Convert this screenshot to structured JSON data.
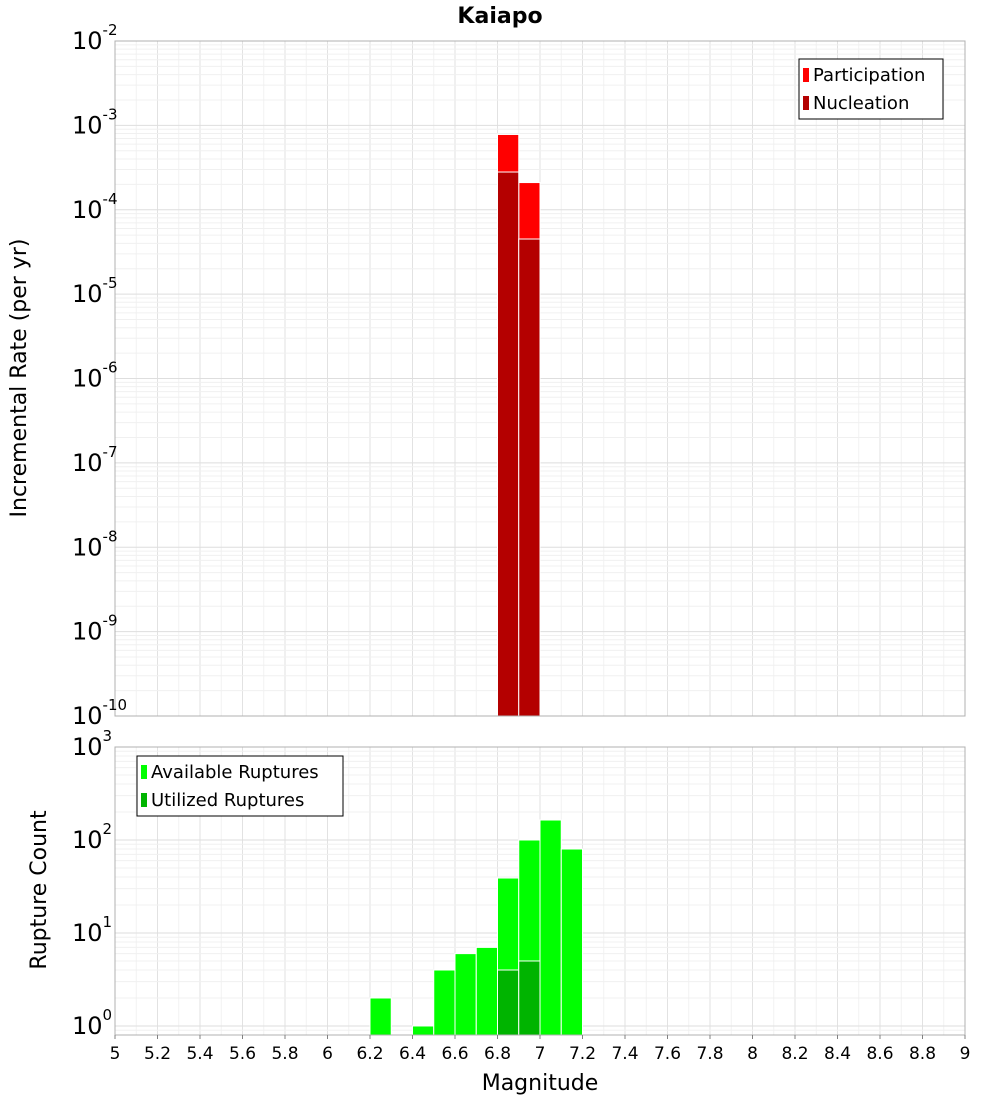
{
  "chart_data": [
    {
      "type": "bar",
      "title": "Kaiapo",
      "ylabel": "Incremental Rate (per yr)",
      "yscale": "log",
      "ylim": [
        1e-10,
        0.01
      ],
      "xlim": [
        5,
        9
      ],
      "bar_width": 0.1,
      "grid": true,
      "legend_position": "top-right",
      "ytick_labels": [
        {
          "base": "10",
          "exp": "-10"
        },
        {
          "base": "10",
          "exp": "-9"
        },
        {
          "base": "10",
          "exp": "-8"
        },
        {
          "base": "10",
          "exp": "-7"
        },
        {
          "base": "10",
          "exp": "-6"
        },
        {
          "base": "10",
          "exp": "-5"
        },
        {
          "base": "10",
          "exp": "-4"
        },
        {
          "base": "10",
          "exp": "-3"
        },
        {
          "base": "10",
          "exp": "-2"
        }
      ],
      "series": [
        {
          "name": "Participation",
          "color": "#ff0000",
          "x": [
            6.85,
            6.95
          ],
          "values": [
            0.00078,
            0.00021
          ]
        },
        {
          "name": "Nucleation",
          "color": "#b40000",
          "x": [
            6.85,
            6.95
          ],
          "values": [
            0.00028,
            4.5e-05
          ]
        }
      ]
    },
    {
      "type": "bar",
      "ylabel": "Rupture Count",
      "xlabel": "Magnitude",
      "yscale": "log",
      "ylim": [
        0.8,
        1000
      ],
      "xlim": [
        5,
        9
      ],
      "bar_width": 0.1,
      "grid": true,
      "legend_position": "top-left",
      "ytick_labels": [
        {
          "base": "10",
          "exp": "0"
        },
        {
          "base": "10",
          "exp": "1"
        },
        {
          "base": "10",
          "exp": "2"
        },
        {
          "base": "10",
          "exp": "3"
        }
      ],
      "xtick_labels": [
        "5",
        "5.2",
        "5.4",
        "5.6",
        "5.8",
        "6",
        "6.2",
        "6.4",
        "6.6",
        "6.8",
        "7",
        "7.2",
        "7.4",
        "7.6",
        "7.8",
        "8",
        "8.2",
        "8.4",
        "8.6",
        "8.8",
        "9"
      ],
      "series": [
        {
          "name": "Available Ruptures",
          "color": "#00ff00",
          "x": [
            6.25,
            6.45,
            6.55,
            6.65,
            6.75,
            6.85,
            6.95,
            7.05,
            7.15
          ],
          "values": [
            2,
            1,
            4,
            6,
            7,
            39,
            100,
            164,
            80
          ]
        },
        {
          "name": "Utilized Ruptures",
          "color": "#00b400",
          "x": [
            6.85,
            6.95
          ],
          "values": [
            4,
            5
          ]
        }
      ]
    }
  ]
}
